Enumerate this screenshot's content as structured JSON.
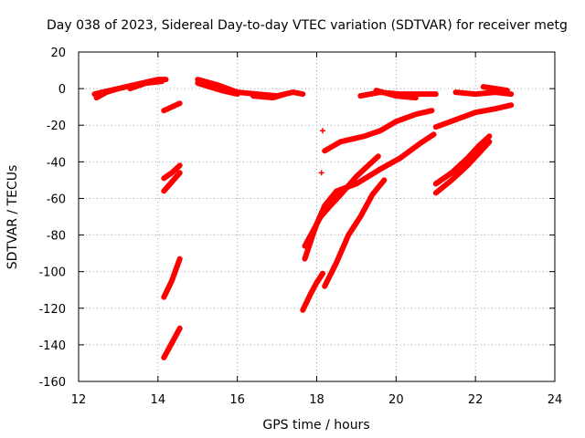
{
  "chart_data": {
    "type": "scatter",
    "title": "Day 038 of 2023, Sidereal Day-to-day VTEC variation (SDTVAR) for receiver metg",
    "xlabel": "GPS time / hours",
    "ylabel": "SDTVAR / TECUs",
    "xlim": [
      12,
      24
    ],
    "ylim": [
      -160,
      20
    ],
    "xticks": [
      12,
      14,
      16,
      18,
      20,
      22,
      24
    ],
    "yticks": [
      -160,
      -140,
      -120,
      -100,
      -80,
      -60,
      -40,
      -20,
      0,
      20
    ],
    "grid": true,
    "legend": "none",
    "marker": "+",
    "series": [
      {
        "name": "SDTVAR",
        "color": "#ff0000",
        "segments": [
          [
            [
              12.4,
              -3
            ],
            [
              12.8,
              -1
            ],
            [
              13.2,
              1
            ],
            [
              13.6,
              3
            ],
            [
              14.0,
              5
            ],
            [
              14.2,
              5
            ]
          ],
          [
            [
              12.45,
              -5
            ],
            [
              12.7,
              -2
            ],
            [
              13.0,
              0
            ]
          ],
          [
            [
              13.3,
              0
            ],
            [
              13.7,
              3
            ],
            [
              14.1,
              4
            ]
          ],
          [
            [
              15.0,
              5
            ],
            [
              15.5,
              2
            ],
            [
              16.0,
              -2
            ],
            [
              16.5,
              -3
            ],
            [
              17.0,
              -4
            ],
            [
              17.4,
              -2
            ],
            [
              17.65,
              -3
            ]
          ],
          [
            [
              15.0,
              3
            ],
            [
              15.3,
              1
            ],
            [
              15.6,
              -1
            ],
            [
              16.0,
              -3
            ]
          ],
          [
            [
              16.4,
              -4
            ],
            [
              16.9,
              -5
            ],
            [
              17.2,
              -3
            ]
          ],
          [
            [
              19.1,
              -4
            ],
            [
              19.6,
              -2
            ],
            [
              20.1,
              -3
            ],
            [
              20.6,
              -3
            ],
            [
              21.0,
              -3
            ]
          ],
          [
            [
              19.5,
              -1
            ],
            [
              20.0,
              -4
            ],
            [
              20.5,
              -5
            ]
          ],
          [
            [
              21.5,
              -2
            ],
            [
              22.0,
              -3
            ],
            [
              22.5,
              -2
            ],
            [
              22.9,
              -3
            ]
          ],
          [
            [
              22.2,
              1
            ],
            [
              22.5,
              0
            ],
            [
              22.8,
              -1
            ]
          ],
          [
            [
              14.15,
              -12
            ],
            [
              14.35,
              -10
            ],
            [
              14.55,
              -8
            ]
          ],
          [
            [
              14.15,
              -49
            ],
            [
              14.35,
              -46
            ],
            [
              14.55,
              -42
            ]
          ],
          [
            [
              14.15,
              -56
            ],
            [
              14.35,
              -51
            ],
            [
              14.55,
              -46
            ]
          ],
          [
            [
              14.15,
              -114
            ],
            [
              14.35,
              -105
            ],
            [
              14.55,
              -93
            ]
          ],
          [
            [
              14.15,
              -147
            ],
            [
              14.35,
              -139
            ],
            [
              14.55,
              -131
            ]
          ],
          [
            [
              18.2,
              -34
            ],
            [
              18.6,
              -29
            ],
            [
              19.2,
              -26
            ],
            [
              19.6,
              -23
            ],
            [
              20.0,
              -18
            ],
            [
              20.5,
              -14
            ],
            [
              20.9,
              -12
            ]
          ],
          [
            [
              17.7,
              -93
            ],
            [
              17.9,
              -80
            ],
            [
              18.0,
              -74
            ],
            [
              18.2,
              -64
            ],
            [
              18.5,
              -56
            ],
            [
              19.0,
              -52
            ],
            [
              19.6,
              -44
            ],
            [
              20.1,
              -38
            ],
            [
              20.6,
              -30
            ],
            [
              20.95,
              -25
            ]
          ],
          [
            [
              17.7,
              -86
            ],
            [
              17.9,
              -78
            ],
            [
              18.1,
              -70
            ],
            [
              18.3,
              -65
            ],
            [
              18.6,
              -58
            ],
            [
              19.0,
              -48
            ],
            [
              19.3,
              -42
            ],
            [
              19.55,
              -37
            ]
          ],
          [
            [
              17.65,
              -121
            ],
            [
              17.85,
              -112
            ],
            [
              18.0,
              -106
            ],
            [
              18.15,
              -101
            ]
          ],
          [
            [
              18.2,
              -108
            ],
            [
              18.5,
              -95
            ],
            [
              18.8,
              -80
            ],
            [
              19.1,
              -70
            ],
            [
              19.4,
              -58
            ],
            [
              19.7,
              -50
            ]
          ],
          [
            [
              21.0,
              -21
            ],
            [
              21.5,
              -17
            ],
            [
              22.0,
              -13
            ],
            [
              22.5,
              -11
            ],
            [
              22.9,
              -9
            ]
          ],
          [
            [
              21.0,
              -52
            ],
            [
              21.4,
              -46
            ],
            [
              21.8,
              -38
            ],
            [
              22.1,
              -31
            ],
            [
              22.35,
              -26
            ]
          ],
          [
            [
              21.0,
              -57
            ],
            [
              21.4,
              -50
            ],
            [
              21.8,
              -42
            ],
            [
              22.1,
              -35
            ],
            [
              22.35,
              -29
            ]
          ]
        ],
        "isolated_points": [
          [
            18.15,
            -23
          ],
          [
            18.12,
            -46
          ]
        ]
      }
    ]
  }
}
